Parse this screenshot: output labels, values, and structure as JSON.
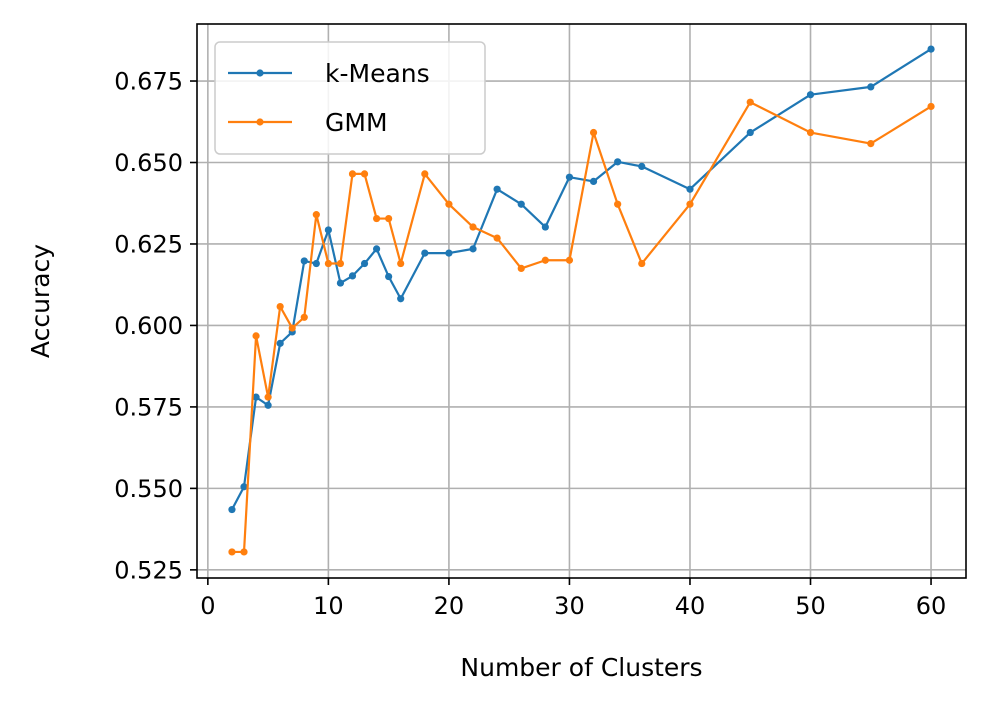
{
  "chart_data": {
    "type": "line",
    "title": "",
    "xlabel": "Number of Clusters",
    "ylabel": "Accuracy",
    "xlim": [
      -0.9,
      62.9
    ],
    "ylim": [
      0.5225,
      0.6925
    ],
    "xticks": [
      0,
      10,
      20,
      30,
      40,
      50,
      60
    ],
    "yticks": [
      0.525,
      0.55,
      0.575,
      0.6,
      0.625,
      0.65,
      0.675
    ],
    "ytick_labels": [
      "0.525",
      "0.550",
      "0.575",
      "0.600",
      "0.625",
      "0.650",
      "0.675"
    ],
    "grid": true,
    "legend_position": "upper-left",
    "x": [
      2,
      3,
      4,
      5,
      6,
      7,
      8,
      9,
      10,
      11,
      12,
      13,
      14,
      15,
      16,
      18,
      20,
      22,
      24,
      26,
      28,
      30,
      32,
      34,
      36,
      40,
      45,
      50,
      55,
      60
    ],
    "series": [
      {
        "name": "k-Means",
        "color": "#1f77b4",
        "values": [
          0.5435,
          0.5505,
          0.578,
          0.5755,
          0.5945,
          0.598,
          0.6198,
          0.619,
          0.6293,
          0.613,
          0.6152,
          0.619,
          0.6235,
          0.615,
          0.6082,
          0.6222,
          0.6222,
          0.6235,
          0.6418,
          0.6372,
          0.6302,
          0.6455,
          0.6442,
          0.6502,
          0.6488,
          0.6418,
          0.6592,
          0.6708,
          0.6732,
          0.6848
        ]
      },
      {
        "name": "GMM",
        "color": "#ff7f0e",
        "values": [
          0.5305,
          0.5305,
          0.5968,
          0.578,
          0.6058,
          0.5992,
          0.6025,
          0.634,
          0.619,
          0.619,
          0.6465,
          0.6465,
          0.6328,
          0.6328,
          0.619,
          0.6465,
          0.6372,
          0.6302,
          0.6268,
          0.6175,
          0.62,
          0.62,
          0.6592,
          0.6372,
          0.619,
          0.6372,
          0.6685,
          0.6592,
          0.6558,
          0.6672
        ]
      }
    ]
  }
}
